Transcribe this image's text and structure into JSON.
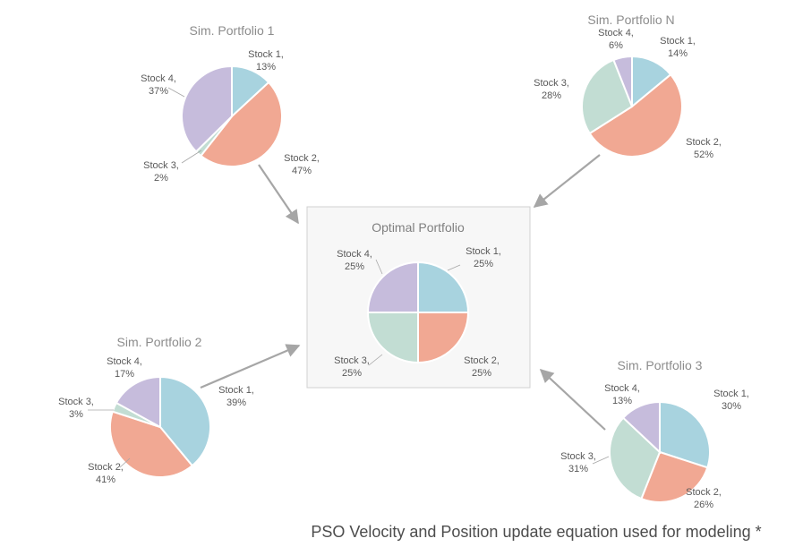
{
  "colors": {
    "stock_1": "#a8d3df",
    "stock_2": "#f1a893",
    "stock_3": "#c2ddd3",
    "stock_4": "#c6bcdc",
    "arrow": "#a6a6a6",
    "box_border": "#d0d0d0",
    "box_fill": "#f7f7f7"
  },
  "chart_data": [
    {
      "id": "sim1",
      "type": "pie",
      "title": "Sim. Portfolio 1",
      "slices": [
        {
          "stock": "Stock 1,",
          "pct": "13%",
          "value": 13
        },
        {
          "stock": "Stock 2,",
          "pct": "47%",
          "value": 47
        },
        {
          "stock": "Stock 3,",
          "pct": "2%",
          "value": 2
        },
        {
          "stock": "Stock 4,",
          "pct": "37%",
          "value": 37
        }
      ]
    },
    {
      "id": "simN",
      "type": "pie",
      "title": "Sim. Portfolio N",
      "slices": [
        {
          "stock": "Stock 1,",
          "pct": "14%",
          "value": 14
        },
        {
          "stock": "Stock 2,",
          "pct": "52%",
          "value": 52
        },
        {
          "stock": "Stock 3,",
          "pct": "28%",
          "value": 28
        },
        {
          "stock": "Stock 4,",
          "pct": "6%",
          "value": 6
        }
      ]
    },
    {
      "id": "optimal",
      "type": "pie",
      "title": "Optimal Portfolio",
      "slices": [
        {
          "stock": "Stock 1,",
          "pct": "25%",
          "value": 25
        },
        {
          "stock": "Stock 2,",
          "pct": "25%",
          "value": 25
        },
        {
          "stock": "Stock 3,",
          "pct": "25%",
          "value": 25
        },
        {
          "stock": "Stock 4,",
          "pct": "25%",
          "value": 25
        }
      ]
    },
    {
      "id": "sim2",
      "type": "pie",
      "title": "Sim. Portfolio 2",
      "slices": [
        {
          "stock": "Stock 1,",
          "pct": "39%",
          "value": 39
        },
        {
          "stock": "Stock 2,",
          "pct": "41%",
          "value": 41
        },
        {
          "stock": "Stock 3,",
          "pct": "3%",
          "value": 3
        },
        {
          "stock": "Stock 4,",
          "pct": "17%",
          "value": 17
        }
      ]
    },
    {
      "id": "sim3",
      "type": "pie",
      "title": "Sim. Portfolio 3",
      "slices": [
        {
          "stock": "Stock 1,",
          "pct": "30%",
          "value": 30
        },
        {
          "stock": "Stock 2,",
          "pct": "26%",
          "value": 26
        },
        {
          "stock": "Stock 3,",
          "pct": "31%",
          "value": 31
        },
        {
          "stock": "Stock 4,",
          "pct": "13%",
          "value": 13
        }
      ]
    }
  ],
  "caption": "PSO Velocity and Position update equation used for modeling *"
}
